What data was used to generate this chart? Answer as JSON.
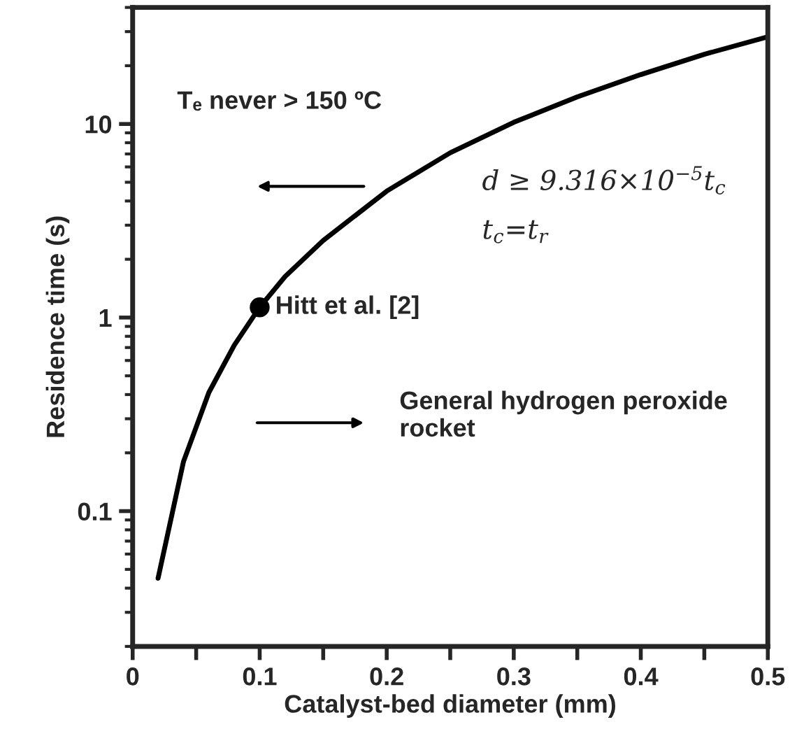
{
  "chart_data": {
    "type": "line",
    "xlabel": "Catalyst-bed diameter (mm)",
    "ylabel": "Residence time (s)",
    "log": "y",
    "xlim": [
      0,
      0.5
    ],
    "ylim": [
      0.02,
      40
    ],
    "xticks": [
      0,
      {
        "value": 0.05,
        "label": null
      },
      0.1,
      {
        "value": 0.15,
        "label": null
      },
      0.2,
      {
        "value": 0.25,
        "label": null
      },
      0.3,
      {
        "value": 0.35,
        "label": null
      },
      0.4,
      {
        "value": 0.45,
        "label": null
      },
      0.5
    ],
    "yticks": [
      0.1,
      1,
      10
    ],
    "grid": false,
    "legend": false,
    "series": [
      {
        "color": "#000000",
        "marker": "none",
        "x": [
          0.02,
          0.04,
          0.06,
          0.08,
          0.1,
          0.12,
          0.15,
          0.2,
          0.25,
          0.3,
          0.35,
          0.4,
          0.45,
          0.5
        ],
        "values": [
          0.045,
          0.18,
          0.41,
          0.72,
          1.13,
          1.63,
          2.5,
          4.5,
          7.1,
          10.2,
          13.8,
          18,
          22.9,
          28.2
        ]
      },
      {
        "type": "scatter",
        "color": "#000000",
        "marker": "circle",
        "x": [
          0.1
        ],
        "values": [
          1.13
        ]
      }
    ],
    "annotations": [
      {
        "text": "Hitt et al. [2]",
        "x": 0.1,
        "y": 1.13
      },
      "Tₑ never > 150 ºC",
      "d ≥ 9.316×10$^{−5}$t$_{c}$",
      "t$_{c}$=t$_{r}$",
      "General hydrogen peroxide\nrocket"
    ]
  }
}
